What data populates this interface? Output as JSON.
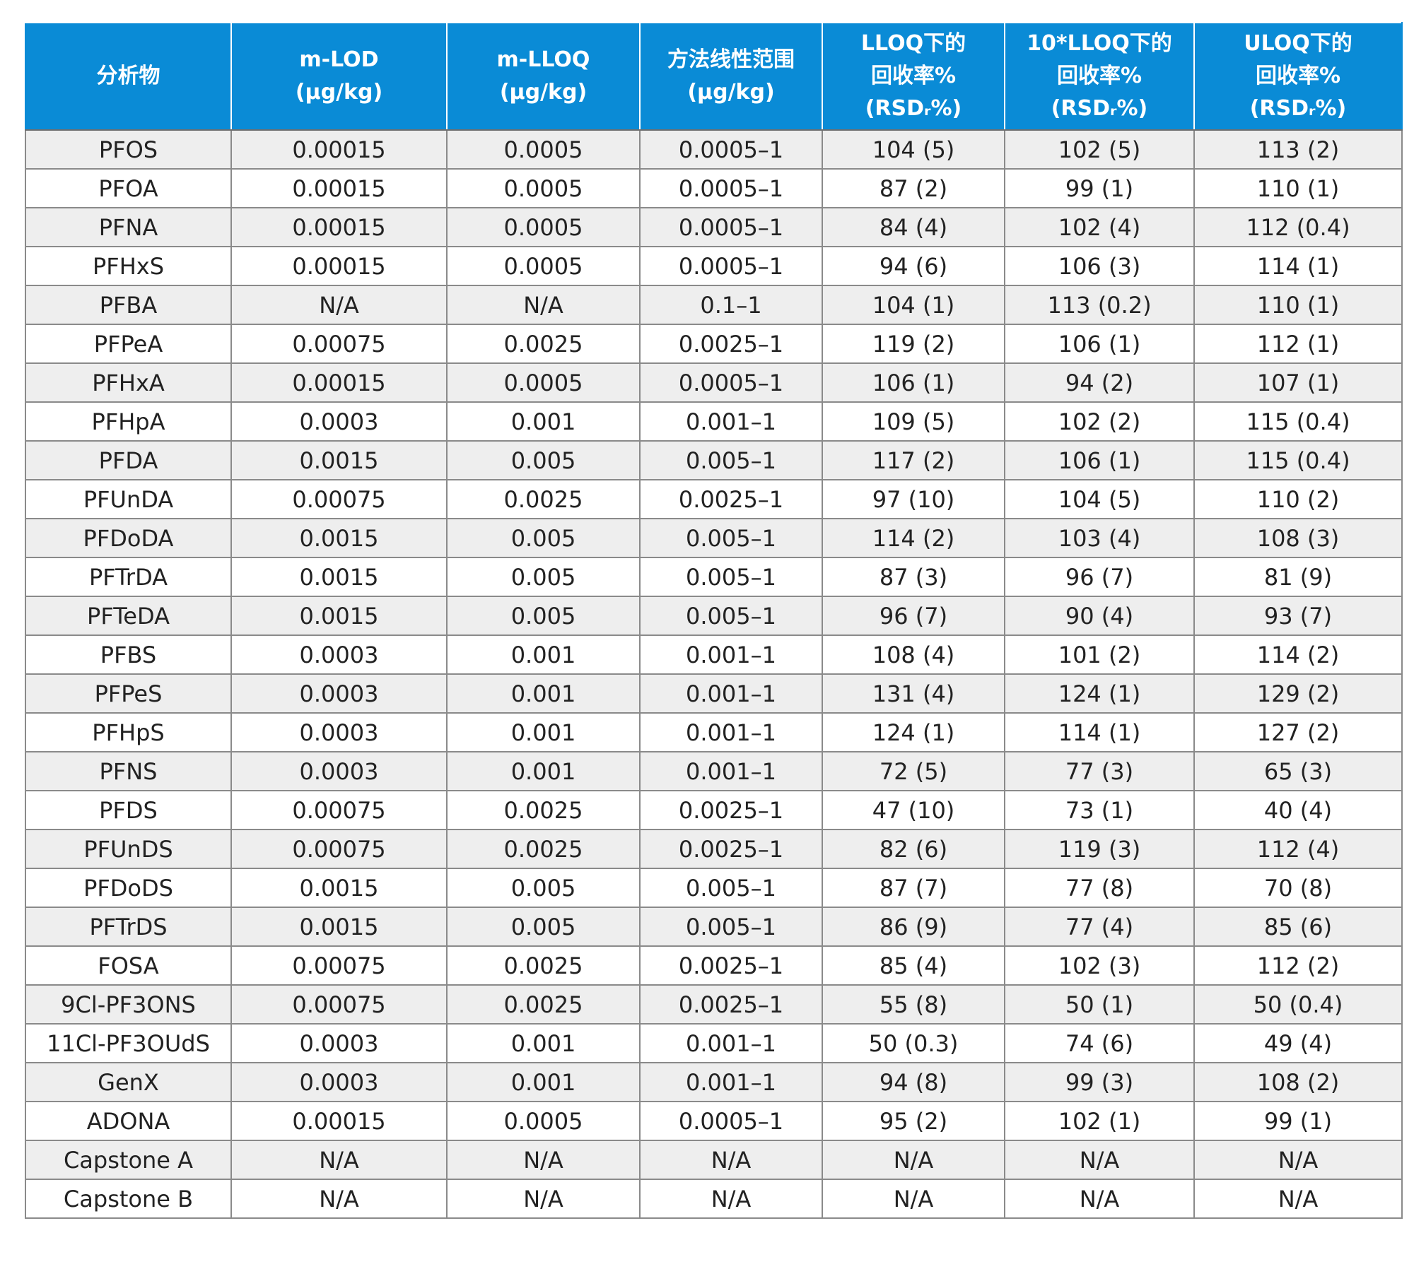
{
  "table": {
    "headers": [
      [
        "分析物"
      ],
      [
        "m-LOD",
        "(µg/kg)"
      ],
      [
        "m-LLOQ",
        "(µg/kg)"
      ],
      [
        "方法线性范围",
        "(µg/kg)"
      ],
      [
        "LLOQ下的",
        "回收率%",
        "(RSDᵣ%)"
      ],
      [
        "10*LLOQ下的",
        "回收率%",
        "(RSDᵣ%)"
      ],
      [
        "ULOQ下的",
        "回收率%",
        "(RSDᵣ%)"
      ]
    ],
    "rows": [
      [
        "PFOS",
        "0.00015",
        "0.0005",
        "0.0005–1",
        "104 (5)",
        "102 (5)",
        "113 (2)"
      ],
      [
        "PFOA",
        "0.00015",
        "0.0005",
        "0.0005–1",
        "87 (2)",
        "99 (1)",
        "110 (1)"
      ],
      [
        "PFNA",
        "0.00015",
        "0.0005",
        "0.0005–1",
        "84 (4)",
        "102 (4)",
        "112 (0.4)"
      ],
      [
        "PFHxS",
        "0.00015",
        "0.0005",
        "0.0005–1",
        "94 (6)",
        "106 (3)",
        "114 (1)"
      ],
      [
        "PFBA",
        "N/A",
        "N/A",
        "0.1–1",
        "104 (1)",
        "113 (0.2)",
        "110 (1)"
      ],
      [
        "PFPeA",
        "0.00075",
        "0.0025",
        "0.0025–1",
        "119 (2)",
        "106 (1)",
        "112 (1)"
      ],
      [
        "PFHxA",
        "0.00015",
        "0.0005",
        "0.0005–1",
        "106 (1)",
        "94 (2)",
        "107 (1)"
      ],
      [
        "PFHpA",
        "0.0003",
        "0.001",
        "0.001–1",
        "109 (5)",
        "102 (2)",
        "115 (0.4)"
      ],
      [
        "PFDA",
        "0.0015",
        "0.005",
        "0.005–1",
        "117 (2)",
        "106 (1)",
        "115 (0.4)"
      ],
      [
        "PFUnDA",
        "0.00075",
        "0.0025",
        "0.0025–1",
        "97 (10)",
        "104 (5)",
        "110 (2)"
      ],
      [
        "PFDoDA",
        "0.0015",
        "0.005",
        "0.005–1",
        "114 (2)",
        "103 (4)",
        "108 (3)"
      ],
      [
        "PFTrDA",
        "0.0015",
        "0.005",
        "0.005–1",
        "87 (3)",
        "96 (7)",
        "81 (9)"
      ],
      [
        "PFTeDA",
        "0.0015",
        "0.005",
        "0.005–1",
        "96 (7)",
        "90 (4)",
        "93 (7)"
      ],
      [
        "PFBS",
        "0.0003",
        "0.001",
        "0.001–1",
        "108 (4)",
        "101 (2)",
        "114 (2)"
      ],
      [
        "PFPeS",
        "0.0003",
        "0.001",
        "0.001–1",
        "131 (4)",
        "124 (1)",
        "129 (2)"
      ],
      [
        "PFHpS",
        "0.0003",
        "0.001",
        "0.001–1",
        "124 (1)",
        "114 (1)",
        "127 (2)"
      ],
      [
        "PFNS",
        "0.0003",
        "0.001",
        "0.001–1",
        "72 (5)",
        "77 (3)",
        "65 (3)"
      ],
      [
        "PFDS",
        "0.00075",
        "0.0025",
        "0.0025–1",
        "47 (10)",
        "73 (1)",
        "40 (4)"
      ],
      [
        "PFUnDS",
        "0.00075",
        "0.0025",
        "0.0025–1",
        "82 (6)",
        "119 (3)",
        "112 (4)"
      ],
      [
        "PFDoDS",
        "0.0015",
        "0.005",
        "0.005–1",
        "87 (7)",
        "77 (8)",
        "70 (8)"
      ],
      [
        "PFTrDS",
        "0.0015",
        "0.005",
        "0.005–1",
        "86 (9)",
        "77 (4)",
        "85 (6)"
      ],
      [
        "FOSA",
        "0.00075",
        "0.0025",
        "0.0025–1",
        "85 (4)",
        "102 (3)",
        "112 (2)"
      ],
      [
        "9Cl-PF3ONS",
        "0.00075",
        "0.0025",
        "0.0025–1",
        "55 (8)",
        "50 (1)",
        "50 (0.4)"
      ],
      [
        "11Cl-PF3OUdS",
        "0.0003",
        "0.001",
        "0.001–1",
        "50 (0.3)",
        "74 (6)",
        "49 (4)"
      ],
      [
        "GenX",
        "0.0003",
        "0.001",
        "0.001–1",
        "94 (8)",
        "99 (3)",
        "108 (2)"
      ],
      [
        "ADONA",
        "0.00015",
        "0.0005",
        "0.0005–1",
        "95 (2)",
        "102 (1)",
        "99 (1)"
      ],
      [
        "Capstone A",
        "N/A",
        "N/A",
        "N/A",
        "N/A",
        "N/A",
        "N/A"
      ],
      [
        "Capstone B",
        "N/A",
        "N/A",
        "N/A",
        "N/A",
        "N/A",
        "N/A"
      ]
    ]
  },
  "colors": {
    "header_bg": "#0a8bd6",
    "header_text": "#ffffff",
    "row_odd_bg": "#eeeeee",
    "row_even_bg": "#ffffff",
    "grid": "#8a8a8a"
  }
}
